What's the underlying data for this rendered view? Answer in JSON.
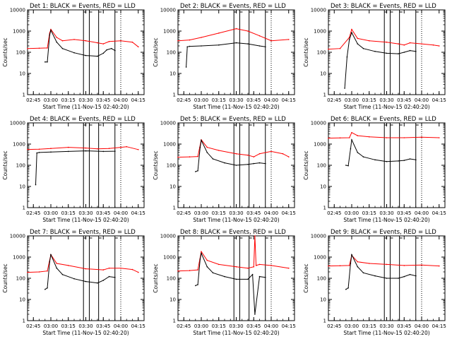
{
  "figure": {
    "background": "#ffffff",
    "axis_color": "#000000",
    "colors": {
      "events": "#000000",
      "lld": "#ff0000"
    }
  },
  "chart_data": [
    {
      "type": "line",
      "title": "Det 1: BLACK = Events, RED = LLD",
      "xlabel": "Start Time (11-Nov-15 02:40:20)",
      "ylabel": "Counts/sec",
      "x_ticks": [
        "02:45",
        "03:00",
        "03:15",
        "03:30",
        "03:45",
        "04:00",
        "04:15"
      ],
      "y_ticks": [
        "1",
        "10",
        "100",
        "1000",
        "10000"
      ],
      "ylog": true,
      "ylim": [
        1,
        10000
      ],
      "vlines_solid": [
        "03:28",
        "03:33",
        "03:41",
        "03:55"
      ],
      "vlines_dotted": [
        "04:00"
      ],
      "series": [
        {
          "name": "BLACK = Events",
          "color": "#000000",
          "x": [
            "02:55",
            "02:57",
            "02:59",
            "03:00",
            "03:05",
            "03:10",
            "03:20",
            "03:30",
            "03:40",
            "03:45",
            "03:48",
            "03:52",
            "03:55"
          ],
          "values": [
            35,
            35,
            650,
            1100,
            300,
            150,
            95,
            70,
            65,
            90,
            130,
            150,
            120
          ]
        },
        {
          "name": "RED = LLD",
          "color": "#ff0000",
          "x": [
            "02:40",
            "02:50",
            "02:57",
            "02:59",
            "03:00",
            "03:05",
            "03:10",
            "03:20",
            "03:30",
            "03:40",
            "03:45",
            "03:50",
            "04:00",
            "04:10",
            "04:15"
          ],
          "values": [
            150,
            155,
            160,
            800,
            1200,
            500,
            350,
            400,
            350,
            280,
            250,
            320,
            350,
            300,
            180
          ]
        }
      ]
    },
    {
      "type": "line",
      "title": "Det 2: BLACK = Events, RED = LLD",
      "xlabel": "Start Time (11-Nov-15 02:40:20)",
      "ylabel": "Counts/sec",
      "x_ticks": [
        "02:45",
        "03:00",
        "03:15",
        "03:30",
        "03:45",
        "04:00",
        "04:15"
      ],
      "y_ticks": [
        "1",
        "10",
        "100",
        "1000",
        "10000"
      ],
      "ylog": true,
      "ylim": [
        1,
        10000
      ],
      "vlines_solid": [
        "03:28",
        "03:33",
        "03:41",
        "03:55"
      ],
      "vlines_dotted": [
        "04:00"
      ],
      "series": [
        {
          "name": "BLACK = Events",
          "color": "#000000",
          "x": [
            "02:47",
            "02:48",
            "02:50",
            "03:00",
            "03:15",
            "03:30",
            "03:40",
            "03:50",
            "03:55"
          ],
          "values": [
            20,
            180,
            190,
            200,
            220,
            280,
            250,
            200,
            180
          ]
        },
        {
          "name": "RED = LLD",
          "color": "#ff0000",
          "x": [
            "02:40",
            "02:50",
            "03:00",
            "03:15",
            "03:30",
            "03:40",
            "03:50",
            "04:00",
            "04:15"
          ],
          "values": [
            350,
            380,
            500,
            800,
            1300,
            1000,
            600,
            350,
            400
          ]
        }
      ]
    },
    {
      "type": "line",
      "title": "Det 3: BLACK = Events, RED = LLD",
      "xlabel": "Start Time (11-Nov-15 02:40:20)",
      "ylabel": "Counts/sec",
      "x_ticks": [
        "02:45",
        "03:00",
        "03:15",
        "03:30",
        "03:45",
        "04:00",
        "04:15"
      ],
      "y_ticks": [
        "1",
        "10",
        "100",
        "1000",
        "10000"
      ],
      "ylog": true,
      "ylim": [
        1,
        10000
      ],
      "vlines_solid": [
        "03:28",
        "03:33",
        "03:41",
        "03:55"
      ],
      "vlines_dotted": [
        "04:00"
      ],
      "series": [
        {
          "name": "BLACK = Events",
          "color": "#000000",
          "x": [
            "02:54",
            "02:56",
            "02:58",
            "03:00",
            "03:05",
            "03:10",
            "03:20",
            "03:30",
            "03:40",
            "03:45",
            "03:50",
            "03:55"
          ],
          "values": [
            2,
            60,
            400,
            850,
            250,
            150,
            110,
            90,
            85,
            100,
            120,
            110
          ]
        },
        {
          "name": "RED = LLD",
          "color": "#ff0000",
          "x": [
            "02:40",
            "02:50",
            "02:58",
            "03:00",
            "03:05",
            "03:15",
            "03:30",
            "03:40",
            "03:45",
            "03:50",
            "04:00",
            "04:10",
            "04:15"
          ],
          "values": [
            140,
            150,
            500,
            1200,
            450,
            350,
            300,
            250,
            220,
            280,
            250,
            220,
            200
          ]
        }
      ]
    },
    {
      "type": "line",
      "title": "Det 4: BLACK = Events, RED = LLD",
      "xlabel": "Start Time (11-Nov-15 02:40:20)",
      "ylabel": "Counts/sec",
      "x_ticks": [
        "02:45",
        "03:00",
        "03:15",
        "03:30",
        "03:45",
        "04:00",
        "04:15"
      ],
      "y_ticks": [
        "1",
        "10",
        "100",
        "1000",
        "10000"
      ],
      "ylog": true,
      "ylim": [
        1,
        10000
      ],
      "vlines_solid": [
        "03:28",
        "03:33",
        "03:41",
        "03:55"
      ],
      "vlines_dotted": [
        "04:00"
      ],
      "series": [
        {
          "name": "BLACK = Events",
          "color": "#000000",
          "x": [
            "02:47",
            "02:48",
            "02:50",
            "03:00",
            "03:15",
            "03:30",
            "03:45",
            "03:55"
          ],
          "values": [
            12,
            380,
            400,
            420,
            450,
            480,
            450,
            460
          ]
        },
        {
          "name": "RED = LLD",
          "color": "#ff0000",
          "x": [
            "02:40",
            "02:50",
            "03:00",
            "03:15",
            "03:30",
            "03:40",
            "03:50",
            "04:00",
            "04:05",
            "04:15"
          ],
          "values": [
            560,
            570,
            620,
            700,
            650,
            600,
            620,
            700,
            750,
            550
          ]
        }
      ]
    },
    {
      "type": "line",
      "title": "Det 5: BLACK = Events, RED = LLD",
      "xlabel": "Start Time (11-Nov-15 02:40:20)",
      "ylabel": "Counts/sec",
      "x_ticks": [
        "02:45",
        "03:00",
        "03:15",
        "03:30",
        "03:45",
        "04:00",
        "04:15"
      ],
      "y_ticks": [
        "1",
        "10",
        "100",
        "1000",
        "10000"
      ],
      "ylog": true,
      "ylim": [
        1,
        10000
      ],
      "vlines_solid": [
        "03:28",
        "03:33",
        "03:41",
        "03:55"
      ],
      "vlines_dotted": [
        "04:00"
      ],
      "series": [
        {
          "name": "BLACK = Events",
          "color": "#000000",
          "x": [
            "02:55",
            "02:57",
            "02:59",
            "03:00",
            "03:05",
            "03:10",
            "03:20",
            "03:30",
            "03:40",
            "03:45",
            "03:50",
            "03:55"
          ],
          "values": [
            50,
            55,
            700,
            1500,
            400,
            200,
            130,
            100,
            110,
            120,
            130,
            120
          ]
        },
        {
          "name": "RED = LLD",
          "color": "#ff0000",
          "x": [
            "02:40",
            "02:50",
            "02:57",
            "03:00",
            "03:05",
            "03:15",
            "03:30",
            "03:40",
            "03:45",
            "03:50",
            "04:00",
            "04:10",
            "04:15"
          ],
          "values": [
            240,
            250,
            260,
            1600,
            700,
            500,
            350,
            300,
            250,
            350,
            450,
            350,
            250
          ]
        }
      ]
    },
    {
      "type": "line",
      "title": "Det 6: BLACK = Events, RED = LLD",
      "xlabel": "Start Time (11-Nov-15 02:40:20)",
      "ylabel": "Counts/sec",
      "x_ticks": [
        "02:45",
        "03:00",
        "03:15",
        "03:30",
        "03:45",
        "04:00",
        "04:15"
      ],
      "y_ticks": [
        "1",
        "10",
        "100",
        "1000",
        "10000"
      ],
      "ylog": true,
      "ylim": [
        1,
        10000
      ],
      "vlines_solid": [
        "03:28",
        "03:33",
        "03:41",
        "03:55"
      ],
      "vlines_dotted": [
        "04:00"
      ],
      "series": [
        {
          "name": "BLACK = Events",
          "color": "#000000",
          "x": [
            "02:55",
            "02:57",
            "02:59",
            "03:00",
            "03:05",
            "03:10",
            "03:20",
            "03:30",
            "03:40",
            "03:45",
            "03:50",
            "03:55"
          ],
          "values": [
            100,
            95,
            600,
            1600,
            400,
            250,
            180,
            150,
            160,
            170,
            200,
            180
          ]
        },
        {
          "name": "RED = LLD",
          "color": "#ff0000",
          "x": [
            "02:40",
            "02:50",
            "02:58",
            "03:00",
            "03:05",
            "03:15",
            "03:30",
            "03:45",
            "04:00",
            "04:15"
          ],
          "values": [
            1900,
            1950,
            2000,
            3500,
            2500,
            2200,
            2000,
            2000,
            2100,
            2000
          ]
        }
      ]
    },
    {
      "type": "line",
      "title": "Det 7: BLACK = Events, RED = LLD",
      "xlabel": "Start Time (11-Nov-15 02:40:20)",
      "ylabel": "Counts/sec",
      "x_ticks": [
        "02:45",
        "03:00",
        "03:15",
        "03:30",
        "03:45",
        "04:00",
        "04:15"
      ],
      "y_ticks": [
        "1",
        "10",
        "100",
        "1000",
        "10000"
      ],
      "ylog": true,
      "ylim": [
        1,
        10000
      ],
      "vlines_solid": [
        "03:28",
        "03:33",
        "03:41",
        "03:55"
      ],
      "vlines_dotted": [
        "04:00"
      ],
      "series": [
        {
          "name": "BLACK = Events",
          "color": "#000000",
          "x": [
            "02:55",
            "02:57",
            "02:59",
            "03:00",
            "03:05",
            "03:10",
            "03:20",
            "03:30",
            "03:40",
            "03:45",
            "03:50",
            "03:55"
          ],
          "values": [
            30,
            35,
            600,
            1300,
            300,
            150,
            95,
            70,
            60,
            80,
            120,
            110
          ]
        },
        {
          "name": "RED = LLD",
          "color": "#ff0000",
          "x": [
            "02:40",
            "02:50",
            "02:57",
            "03:00",
            "03:05",
            "03:15",
            "03:30",
            "03:45",
            "03:50",
            "04:00",
            "04:10",
            "04:15"
          ],
          "values": [
            190,
            200,
            220,
            1300,
            500,
            400,
            280,
            250,
            300,
            300,
            260,
            190
          ]
        }
      ]
    },
    {
      "type": "line",
      "title": "Det 8: BLACK = Events, RED = LLD",
      "xlabel": "Start Time (11-Nov-15 02:40:20)",
      "ylabel": "Counts/sec",
      "x_ticks": [
        "02:45",
        "03:00",
        "03:15",
        "03:30",
        "03:45",
        "04:00",
        "04:15"
      ],
      "y_ticks": [
        "1",
        "10",
        "100",
        "1000",
        "10000"
      ],
      "ylog": true,
      "ylim": [
        1,
        10000
      ],
      "vlines_solid": [
        "03:28",
        "03:33",
        "03:41",
        "03:55"
      ],
      "vlines_dotted": [
        "04:00"
      ],
      "series": [
        {
          "name": "BLACK = Events",
          "color": "#000000",
          "x": [
            "02:55",
            "02:57",
            "02:59",
            "03:00",
            "03:05",
            "03:10",
            "03:20",
            "03:30",
            "03:40",
            "03:44",
            "03:46",
            "03:50",
            "03:55"
          ],
          "values": [
            45,
            50,
            800,
            1500,
            350,
            180,
            120,
            90,
            90,
            150,
            2,
            120,
            110
          ]
        },
        {
          "name": "RED = LLD",
          "color": "#ff0000",
          "x": [
            "02:40",
            "02:50",
            "02:57",
            "03:00",
            "03:05",
            "03:15",
            "03:30",
            "03:40",
            "03:45",
            "03:46",
            "03:47",
            "03:50",
            "04:00",
            "04:15"
          ],
          "values": [
            220,
            230,
            250,
            1800,
            700,
            450,
            350,
            300,
            350,
            10000,
            400,
            450,
            400,
            300
          ]
        }
      ]
    },
    {
      "type": "line",
      "title": "Det 9: BLACK = Events, RED = LLD",
      "xlabel": "Start Time (11-Nov-15 02:40:20)",
      "ylabel": "Counts/sec",
      "x_ticks": [
        "02:45",
        "03:00",
        "03:15",
        "03:30",
        "03:45",
        "04:00",
        "04:15"
      ],
      "y_ticks": [
        "1",
        "10",
        "100",
        "1000",
        "10000"
      ],
      "ylog": true,
      "ylim": [
        1,
        10000
      ],
      "vlines_solid": [
        "03:28",
        "03:33",
        "03:41",
        "03:55"
      ],
      "vlines_dotted": [
        "04:00"
      ],
      "series": [
        {
          "name": "BLACK = Events",
          "color": "#000000",
          "x": [
            "02:55",
            "02:57",
            "02:59",
            "03:00",
            "03:05",
            "03:10",
            "03:20",
            "03:30",
            "03:40",
            "03:45",
            "03:50",
            "03:55"
          ],
          "values": [
            30,
            35,
            500,
            1300,
            350,
            180,
            130,
            100,
            100,
            120,
            150,
            130
          ]
        },
        {
          "name": "RED = LLD",
          "color": "#ff0000",
          "x": [
            "02:40",
            "02:50",
            "02:58",
            "03:00",
            "03:05",
            "03:15",
            "03:30",
            "03:45",
            "04:00",
            "04:15"
          ],
          "values": [
            380,
            390,
            400,
            1200,
            600,
            500,
            450,
            400,
            420,
            380
          ]
        }
      ]
    }
  ]
}
